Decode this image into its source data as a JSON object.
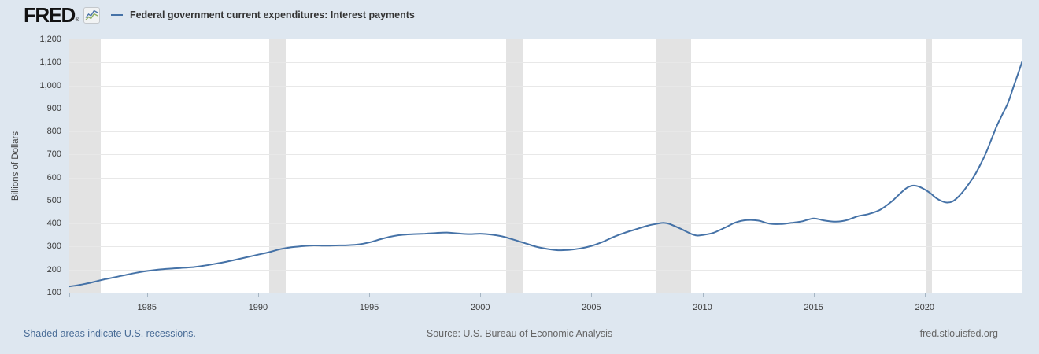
{
  "header": {
    "logo_text": "FRED",
    "registered_mark": "®",
    "series_title": "Federal government current expenditures: Interest payments"
  },
  "y_axis": {
    "title": "Billions of Dollars",
    "ticks": [
      {
        "label": "1,200",
        "value": 1200
      },
      {
        "label": "1,100",
        "value": 1100
      },
      {
        "label": "1,000",
        "value": 1000
      },
      {
        "label": "900",
        "value": 900
      },
      {
        "label": "800",
        "value": 800
      },
      {
        "label": "700",
        "value": 700
      },
      {
        "label": "600",
        "value": 600
      },
      {
        "label": "500",
        "value": 500
      },
      {
        "label": "400",
        "value": 400
      },
      {
        "label": "300",
        "value": 300
      },
      {
        "label": "200",
        "value": 200
      },
      {
        "label": "100",
        "value": 100
      }
    ]
  },
  "x_axis": {
    "ticks": [
      {
        "label": "1985",
        "year": 1985
      },
      {
        "label": "1990",
        "year": 1990
      },
      {
        "label": "1995",
        "year": 1995
      },
      {
        "label": "2000",
        "year": 2000
      },
      {
        "label": "2005",
        "year": 2005
      },
      {
        "label": "2010",
        "year": 2010
      },
      {
        "label": "2015",
        "year": 2015
      },
      {
        "label": "2020",
        "year": 2020
      }
    ]
  },
  "footer": {
    "recessions_note": "Shaded areas indicate U.S. recessions.",
    "source_note": "Source: U.S. Bureau of Economic Analysis",
    "fred_url": "fred.stlouisfed.org"
  },
  "colors": {
    "page_background": "#dee7f0",
    "plot_background": "#ffffff",
    "gridline": "#e8e8e8",
    "recession_band": "#e3e3e3",
    "line": "#4572a7",
    "link_blue": "#4a6d97",
    "muted_text": "#666666",
    "axis_text": "#3c3c3c",
    "title_text": "#333333"
  },
  "chart_data": {
    "type": "line",
    "title": "Federal government current expenditures: Interest payments",
    "xlabel": "",
    "ylabel": "Billions of Dollars",
    "x_range": [
      1981.5,
      2024.4
    ],
    "y_range": [
      100,
      1200
    ],
    "y_gridline_step": 100,
    "grid": true,
    "legend_position": "top-left-header",
    "recession_bands": [
      [
        1981.5,
        1982.92
      ],
      [
        1990.5,
        1991.25
      ],
      [
        2001.17,
        2001.92
      ],
      [
        2007.92,
        2009.5
      ],
      [
        2020.08,
        2020.33
      ]
    ],
    "series": [
      {
        "name": "Federal government current expenditures: Interest payments",
        "color": "#4572a7",
        "points": [
          [
            1981.5,
            127
          ],
          [
            1981.75,
            130
          ],
          [
            1982,
            134
          ],
          [
            1982.25,
            139
          ],
          [
            1982.5,
            144
          ],
          [
            1982.75,
            150
          ],
          [
            1983,
            156
          ],
          [
            1983.5,
            166
          ],
          [
            1984,
            176
          ],
          [
            1984.5,
            186
          ],
          [
            1985,
            194
          ],
          [
            1985.5,
            200
          ],
          [
            1986,
            204
          ],
          [
            1986.5,
            207
          ],
          [
            1987,
            210
          ],
          [
            1987.5,
            216
          ],
          [
            1988,
            224
          ],
          [
            1988.5,
            233
          ],
          [
            1989,
            243
          ],
          [
            1989.5,
            254
          ],
          [
            1990,
            265
          ],
          [
            1990.5,
            276
          ],
          [
            1991,
            289
          ],
          [
            1991.5,
            297
          ],
          [
            1992,
            302
          ],
          [
            1992.5,
            305
          ],
          [
            1993,
            304
          ],
          [
            1993.5,
            305
          ],
          [
            1994,
            306
          ],
          [
            1994.5,
            309
          ],
          [
            1995,
            318
          ],
          [
            1995.5,
            332
          ],
          [
            1996,
            344
          ],
          [
            1996.5,
            351
          ],
          [
            1997,
            354
          ],
          [
            1997.5,
            356
          ],
          [
            1998,
            359
          ],
          [
            1998.5,
            361
          ],
          [
            1999,
            357
          ],
          [
            1999.5,
            354
          ],
          [
            2000,
            356
          ],
          [
            2000.5,
            352
          ],
          [
            2001,
            344
          ],
          [
            2001.5,
            330
          ],
          [
            2002,
            315
          ],
          [
            2002.5,
            300
          ],
          [
            2003,
            290
          ],
          [
            2003.5,
            284
          ],
          [
            2004,
            286
          ],
          [
            2004.5,
            292
          ],
          [
            2005,
            303
          ],
          [
            2005.5,
            320
          ],
          [
            2006,
            342
          ],
          [
            2006.5,
            360
          ],
          [
            2007,
            375
          ],
          [
            2007.5,
            390
          ],
          [
            2008,
            400
          ],
          [
            2008.25,
            403
          ],
          [
            2008.5,
            399
          ],
          [
            2009,
            378
          ],
          [
            2009.5,
            355
          ],
          [
            2009.75,
            348
          ],
          [
            2010,
            350
          ],
          [
            2010.5,
            360
          ],
          [
            2011,
            382
          ],
          [
            2011.5,
            405
          ],
          [
            2012,
            415
          ],
          [
            2012.5,
            413
          ],
          [
            2013,
            400
          ],
          [
            2013.5,
            398
          ],
          [
            2014,
            403
          ],
          [
            2014.5,
            410
          ],
          [
            2015,
            422
          ],
          [
            2015.5,
            413
          ],
          [
            2016,
            408
          ],
          [
            2016.5,
            415
          ],
          [
            2017,
            432
          ],
          [
            2017.5,
            442
          ],
          [
            2018,
            460
          ],
          [
            2018.5,
            495
          ],
          [
            2019,
            540
          ],
          [
            2019.25,
            558
          ],
          [
            2019.5,
            565
          ],
          [
            2019.75,
            560
          ],
          [
            2020,
            548
          ],
          [
            2020.25,
            532
          ],
          [
            2020.5,
            512
          ],
          [
            2020.75,
            498
          ],
          [
            2021,
            491
          ],
          [
            2021.25,
            496
          ],
          [
            2021.5,
            515
          ],
          [
            2021.75,
            542
          ],
          [
            2022,
            575
          ],
          [
            2022.25,
            610
          ],
          [
            2022.5,
            655
          ],
          [
            2022.75,
            705
          ],
          [
            2023,
            765
          ],
          [
            2023.25,
            825
          ],
          [
            2023.5,
            875
          ],
          [
            2023.75,
            925
          ],
          [
            2024,
            995
          ],
          [
            2024.25,
            1065
          ],
          [
            2024.4,
            1108
          ]
        ]
      }
    ]
  }
}
